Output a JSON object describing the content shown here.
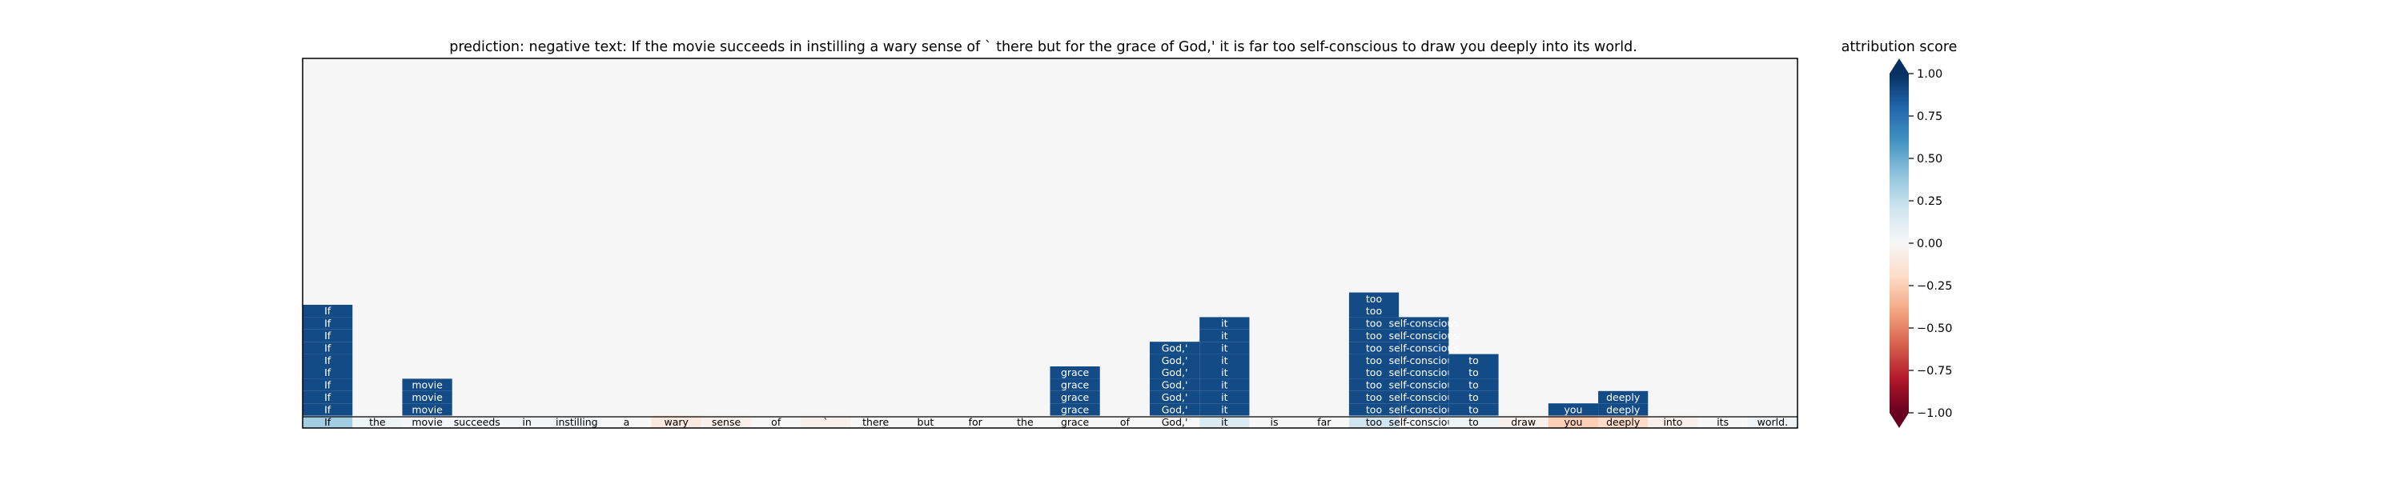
{
  "title": "prediction:  negative     text:  If the movie succeeds in instilling a wary sense of ` there but for the grace of God,' it is far too self-conscious to draw you deeply into its world.",
  "colorbar": {
    "label": "attribution score",
    "ticks": [
      "1.00",
      "0.75",
      "0.50",
      "0.25",
      "0.00",
      "−0.25",
      "−0.50",
      "−0.75",
      "−1.00"
    ],
    "tick_values": [
      1.0,
      0.75,
      0.5,
      0.25,
      0.0,
      -0.25,
      -0.5,
      -0.75,
      -1.0
    ]
  },
  "chart_data": {
    "type": "heatmap",
    "title": "prediction:  negative     text:  If the movie succeeds in instilling a wary sense of ` there but for the grace of God,' it is far too self-conscious to draw you deeply into its world.",
    "prediction": "negative",
    "colorbar_label": "attribution score",
    "vmin": -1.0,
    "vmax": 1.0,
    "colormap": "RdBu",
    "tokens": [
      "If",
      "the",
      "movie",
      "succeeds",
      "in",
      "instilling",
      "a",
      "wary",
      "sense",
      "of",
      "`",
      "there",
      "but",
      "for",
      "the",
      "grace",
      "of",
      "God,'",
      "it",
      "is",
      "far",
      "too",
      "self-conscious",
      "to",
      "draw",
      "you",
      "deeply",
      "into",
      "its",
      "world."
    ],
    "bottom_row_scores": [
      0.35,
      0.05,
      0.02,
      0.02,
      0.02,
      0.03,
      0.0,
      -0.1,
      -0.05,
      0.0,
      -0.05,
      0.0,
      0.0,
      0.0,
      0.0,
      0.0,
      0.0,
      0.0,
      0.15,
      0.0,
      0.0,
      0.2,
      0.02,
      0.05,
      -0.05,
      -0.25,
      -0.2,
      -0.05,
      0.0,
      0.03
    ],
    "stacked_columns": [
      {
        "token_index": 0,
        "label": "If",
        "count": 9
      },
      {
        "token_index": 2,
        "label": "movie",
        "count": 3
      },
      {
        "token_index": 15,
        "label": "grace",
        "count": 4
      },
      {
        "token_index": 17,
        "label": "God,'",
        "count": 6
      },
      {
        "token_index": 18,
        "label": "it",
        "count": 8
      },
      {
        "token_index": 21,
        "label": "too",
        "count": 10
      },
      {
        "token_index": 22,
        "label": "self-conscious",
        "count": 8
      },
      {
        "token_index": 23,
        "label": "to",
        "count": 5
      },
      {
        "token_index": 25,
        "label": "you",
        "count": 1
      },
      {
        "token_index": 26,
        "label": "deeply",
        "count": 2
      }
    ],
    "stacked_score": 0.9,
    "rows_total": 30
  }
}
